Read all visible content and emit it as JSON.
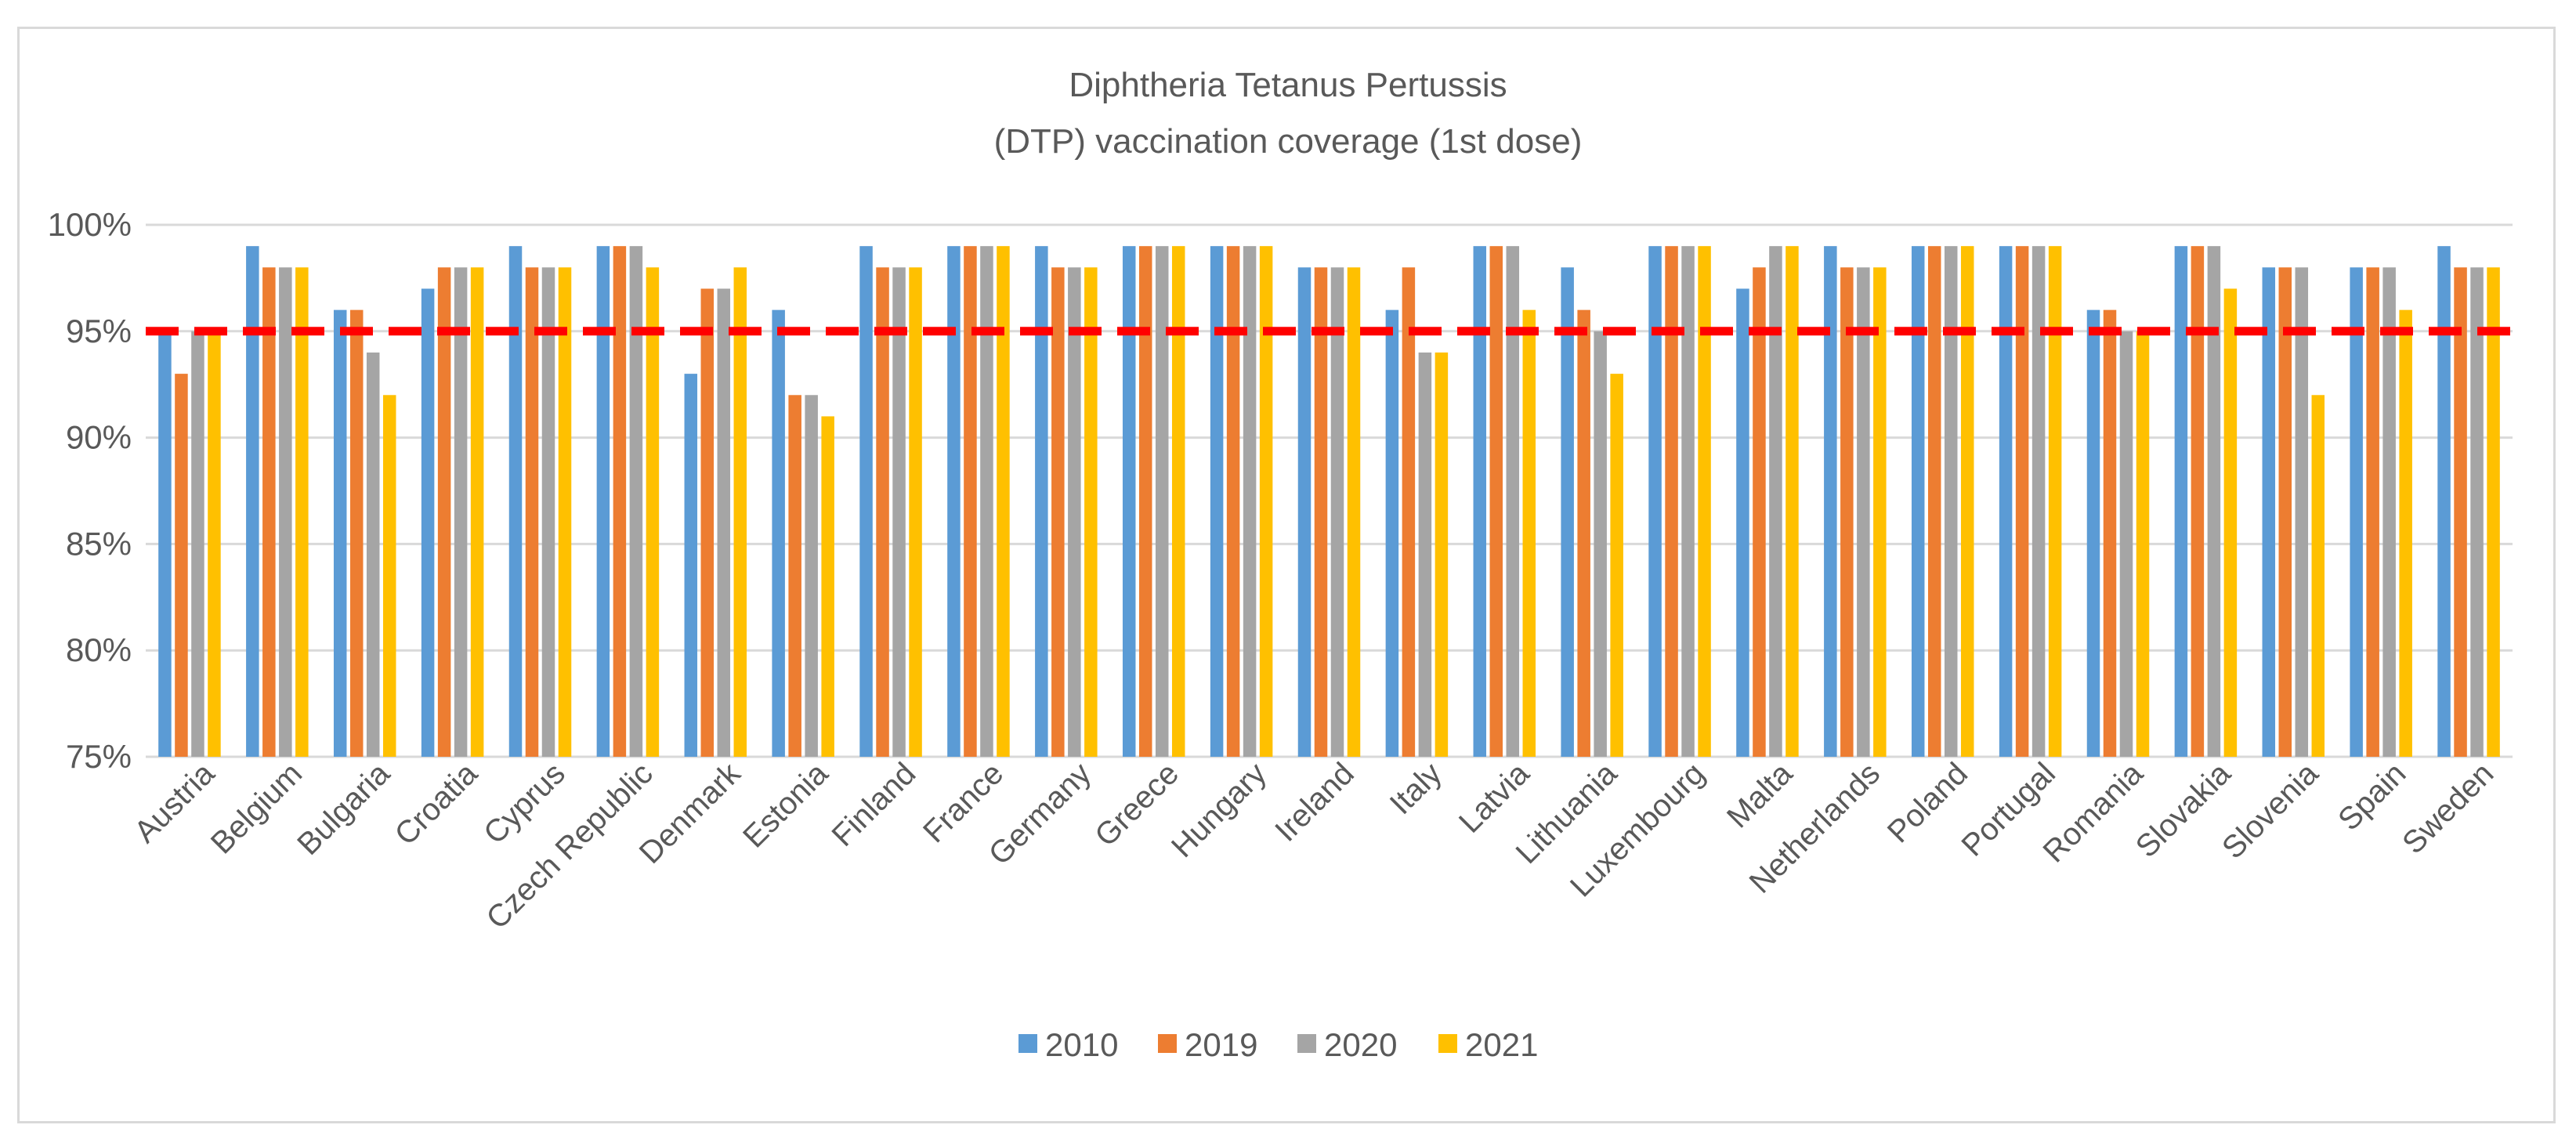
{
  "chart_data": {
    "type": "bar",
    "title_line1": "Diphtheria Tetanus Pertussis",
    "title_line2": "(DTP) vaccination coverage (1st dose)",
    "ylim": [
      75,
      100
    ],
    "yticks": [
      75,
      80,
      85,
      90,
      95,
      100
    ],
    "ytick_labels": [
      "75%",
      "80%",
      "85%",
      "90%",
      "95%",
      "100%"
    ],
    "target_line": 95,
    "categories": [
      "Austria",
      "Belgium",
      "Bulgaria",
      "Croatia",
      "Cyprus",
      "Czech Republic",
      "Denmark",
      "Estonia",
      "Finland",
      "France",
      "Germany",
      "Greece",
      "Hungary",
      "Ireland",
      "Italy",
      "Latvia",
      "Lithuania",
      "Luxembourg",
      "Malta",
      "Netherlands",
      "Poland",
      "Portugal",
      "Romania",
      "Slovakia",
      "Slovenia",
      "Spain",
      "Sweden"
    ],
    "series": [
      {
        "name": "2010",
        "color": "#5b9bd5",
        "values": [
          95,
          99,
          96,
          97,
          99,
          99,
          93,
          96,
          99,
          99,
          99,
          99,
          99,
          98,
          96,
          99,
          98,
          99,
          97,
          99,
          99,
          99,
          96,
          99,
          98,
          98,
          99
        ]
      },
      {
        "name": "2019",
        "color": "#ed7d31",
        "values": [
          93,
          98,
          96,
          98,
          98,
          99,
          97,
          92,
          98,
          99,
          98,
          99,
          99,
          98,
          98,
          99,
          96,
          99,
          98,
          98,
          99,
          99,
          96,
          99,
          98,
          98,
          98
        ]
      },
      {
        "name": "2020",
        "color": "#a5a5a5",
        "values": [
          95,
          98,
          94,
          98,
          98,
          99,
          97,
          92,
          98,
          99,
          98,
          99,
          99,
          98,
          94,
          99,
          95,
          99,
          99,
          98,
          99,
          99,
          95,
          99,
          98,
          98,
          98
        ]
      },
      {
        "name": "2021",
        "color": "#ffc000",
        "values": [
          95,
          98,
          92,
          98,
          98,
          98,
          98,
          91,
          98,
          99,
          98,
          99,
          99,
          98,
          94,
          96,
          93,
          99,
          99,
          98,
          99,
          99,
          95,
          97,
          92,
          96,
          98
        ]
      }
    ],
    "grid": true,
    "legend_position": "bottom"
  },
  "colors": {
    "target_line": "#ff0000",
    "grid": "#d9d9d9",
    "text": "#595959"
  }
}
